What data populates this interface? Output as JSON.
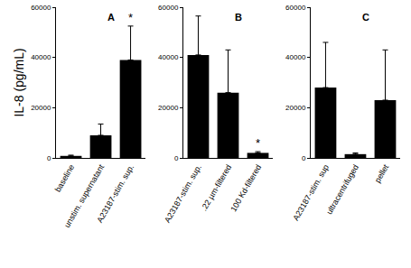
{
  "chart_data": [
    {
      "type": "bar",
      "title": "A",
      "y_label": "IL-8 (pg/mL)",
      "categories": [
        "baseline",
        "unstim. supernatant",
        "A23187-stim. sup."
      ],
      "values": [
        800,
        9000,
        39000
      ],
      "errors": [
        300,
        4500,
        13500
      ],
      "color": "#000000",
      "ylim": [
        0,
        60000
      ],
      "yticks": [
        0,
        20000,
        40000,
        60000
      ],
      "annotations": [
        {
          "text": "*",
          "category": "A23187-stim. sup."
        }
      ]
    },
    {
      "type": "bar",
      "title": "B",
      "categories": [
        "A23187-stim. sup.",
        ".22 µm-filtered",
        "100 Kd-filtered"
      ],
      "values": [
        41000,
        26000,
        2000
      ],
      "errors": [
        15500,
        17000,
        500
      ],
      "color": "#000000",
      "ylim": [
        0,
        60000
      ],
      "yticks": [
        0,
        20000,
        40000,
        60000
      ],
      "annotations": [
        {
          "text": "*",
          "category": "100 Kd-filtered"
        }
      ]
    },
    {
      "type": "bar",
      "title": "C",
      "categories": [
        "A23187-stim. sup",
        "ultracentrifuged",
        "pellet"
      ],
      "values": [
        28000,
        1500,
        23000
      ],
      "errors": [
        18000,
        500,
        20000
      ],
      "color": "#000000",
      "ylim": [
        0,
        60000
      ],
      "yticks": [
        0,
        20000,
        40000,
        60000
      ],
      "annotations": []
    }
  ]
}
